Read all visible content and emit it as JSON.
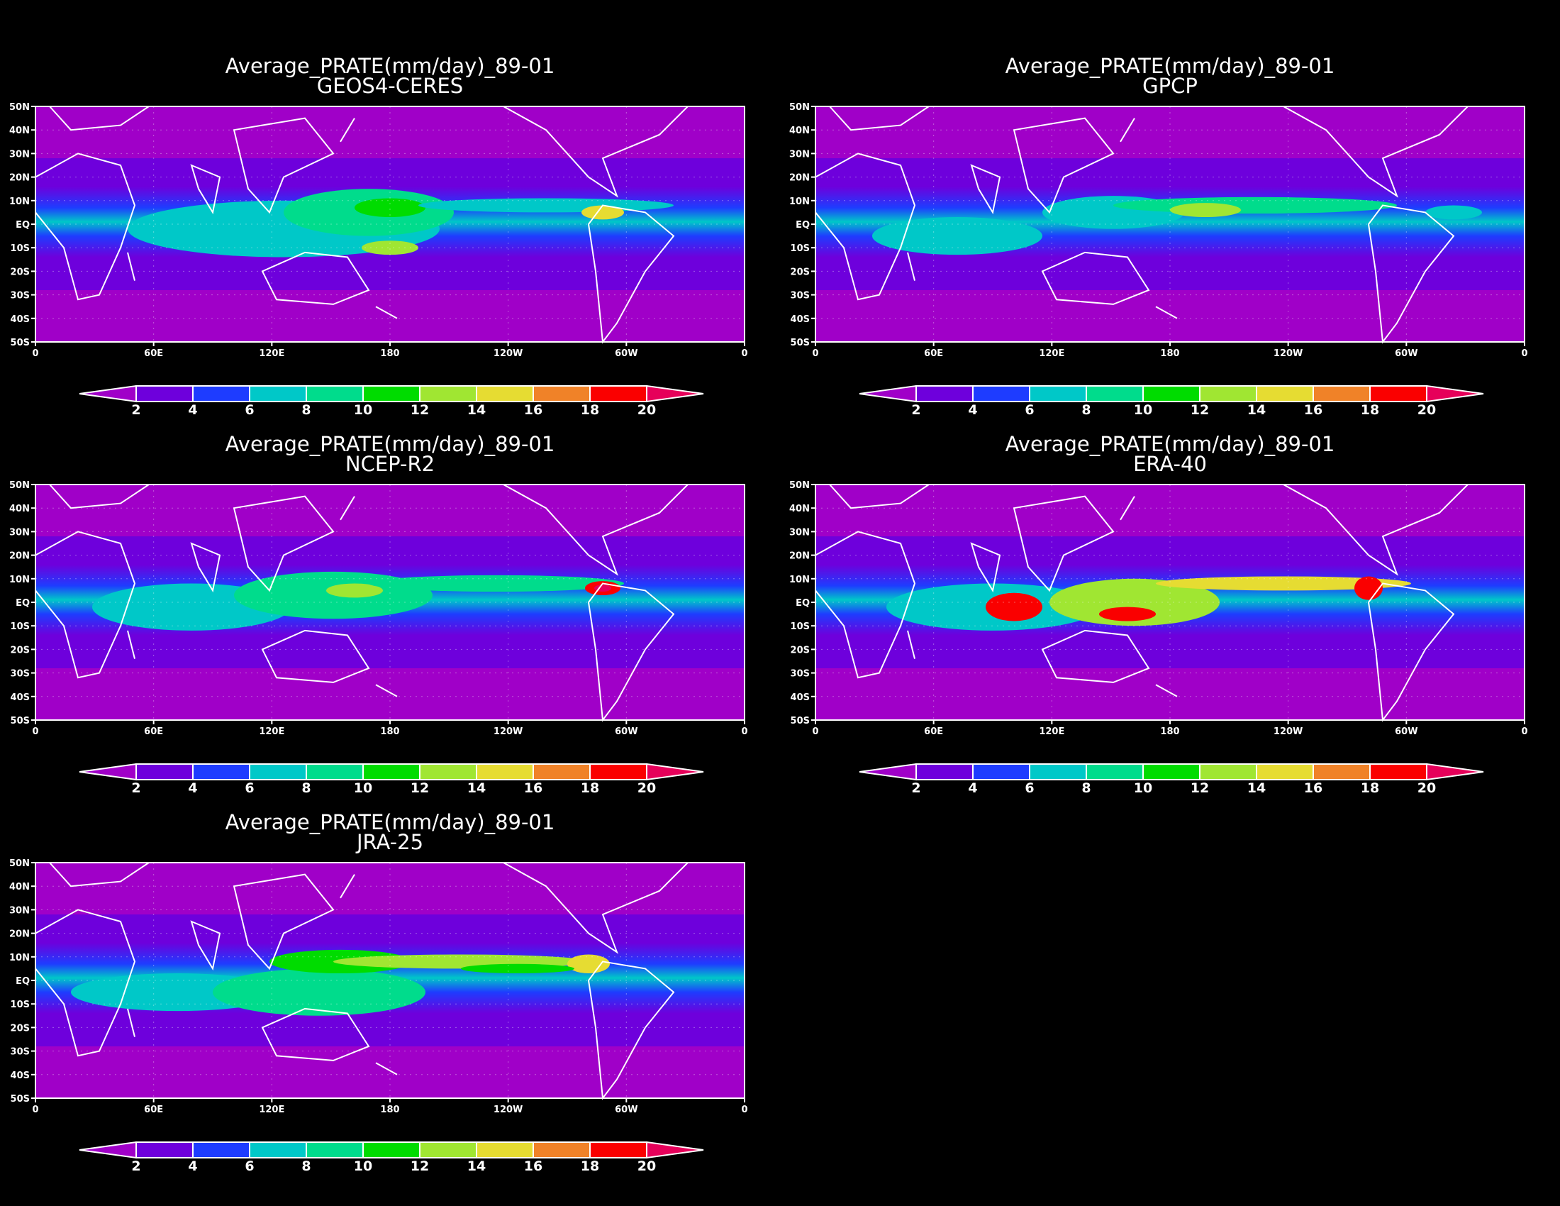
{
  "background": "#000000",
  "panel_title": "Average_PRATE(mm/day)_89-01",
  "colorbar": {
    "tick_labels": [
      "2",
      "4",
      "6",
      "8",
      "10",
      "12",
      "14",
      "16",
      "18",
      "20"
    ],
    "colors": [
      "#a000c8",
      "#6e00dc",
      "#1e3cff",
      "#00c8c8",
      "#00dc8c",
      "#00dc00",
      "#a0e632",
      "#e6dc32",
      "#f08228",
      "#fa0000",
      "#e6005a"
    ]
  },
  "axes": {
    "x_ticks": [
      "0",
      "60E",
      "120E",
      "180",
      "120W",
      "60W",
      "0"
    ],
    "y_ticks": [
      "50N",
      "40N",
      "30N",
      "20N",
      "10N",
      "EQ",
      "10S",
      "20S",
      "30S",
      "40S",
      "50S"
    ]
  },
  "panels": [
    {
      "id": "geos4-ceres",
      "subtitle": "GEOS4-CERES"
    },
    {
      "id": "gpcp",
      "subtitle": "GPCP"
    },
    {
      "id": "ncep-r2",
      "subtitle": "NCEP-R2"
    },
    {
      "id": "era-40",
      "subtitle": "ERA-40"
    },
    {
      "id": "jra-25",
      "subtitle": "JRA-25"
    }
  ]
}
